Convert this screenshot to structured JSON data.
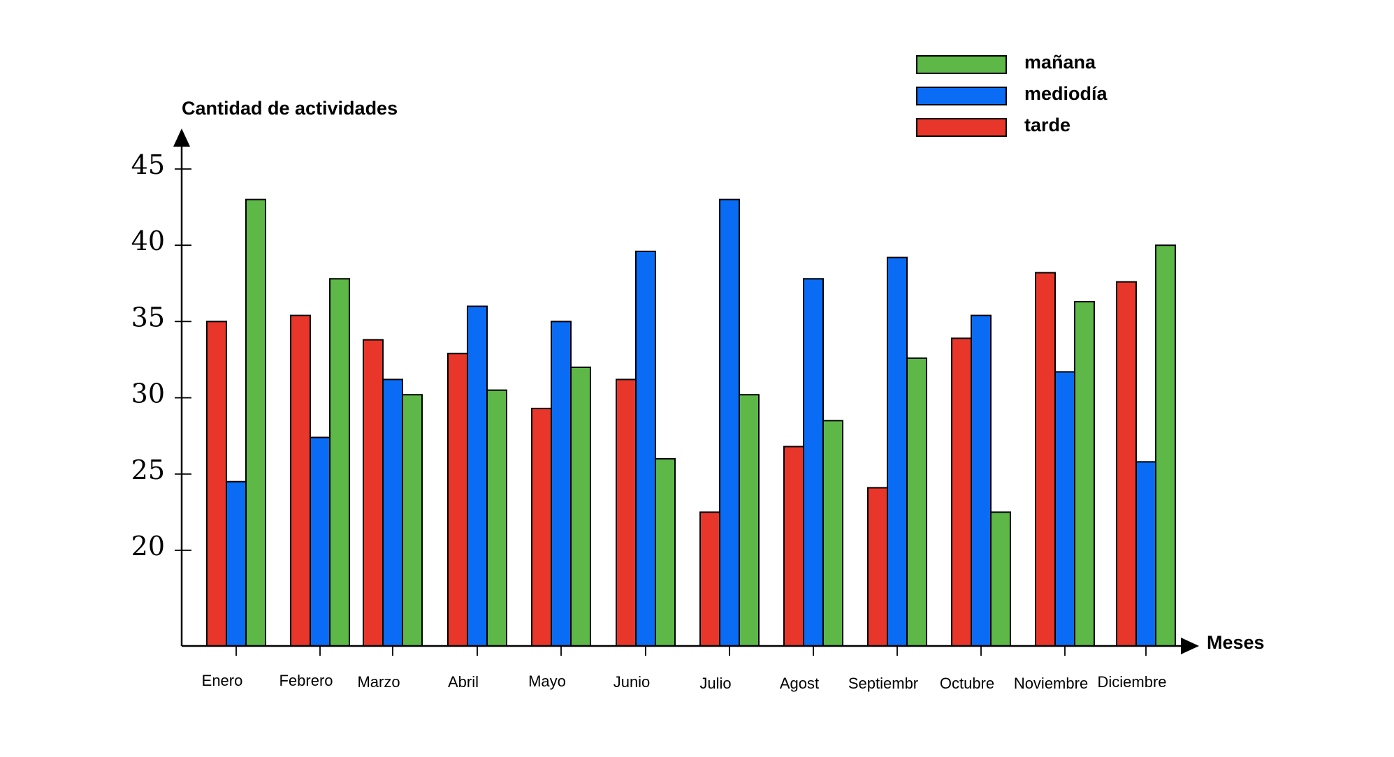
{
  "chart_data": {
    "type": "bar",
    "title": "",
    "xlabel": "Meses",
    "ylabel": "Cantidad de actividades",
    "categories": [
      "Enero",
      "Febrero",
      "Marzo",
      "Abril",
      "Mayo",
      "Junio",
      "Julio",
      "Agost",
      "Septiembr",
      "Octubre",
      "Noviembre",
      "Diciembre"
    ],
    "series": [
      {
        "name": "tarde",
        "color": "#e8372a",
        "values": [
          35.0,
          35.4,
          33.8,
          32.9,
          29.3,
          31.2,
          22.5,
          26.8,
          24.1,
          33.9,
          38.2,
          37.6
        ]
      },
      {
        "name": "mediodía",
        "color": "#0a6cf5",
        "values": [
          24.5,
          27.4,
          31.2,
          36.0,
          35.0,
          39.6,
          43.0,
          37.8,
          39.2,
          35.4,
          31.7,
          25.8
        ]
      },
      {
        "name": "mañana",
        "color": "#5db847",
        "values": [
          43.0,
          37.8,
          30.2,
          30.5,
          32.0,
          26.0,
          30.2,
          28.5,
          32.6,
          22.5,
          36.3,
          40.0
        ]
      }
    ],
    "yticks": [
      20,
      25,
      30,
      35,
      40,
      45
    ],
    "ytick_labels": [
      "20",
      "25",
      "30",
      "35",
      "40",
      "45"
    ],
    "ylim": [
      14,
      47
    ],
    "grid": false,
    "legend_position": "top-right",
    "legend_order": [
      "mañana",
      "mediodía",
      "tarde"
    ]
  }
}
